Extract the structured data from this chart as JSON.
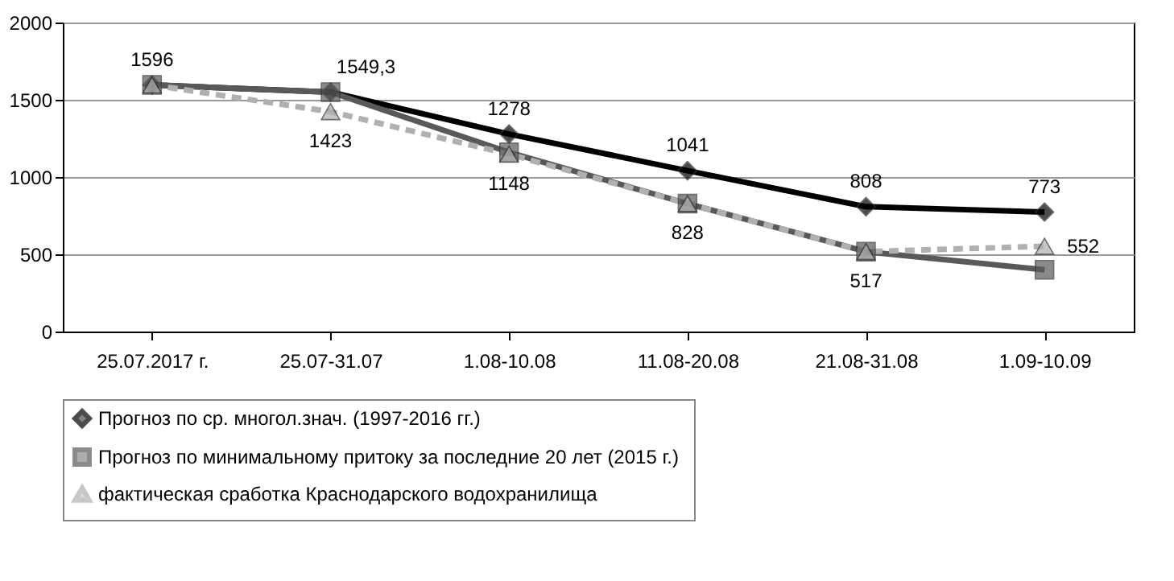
{
  "chart_data": {
    "type": "line",
    "categories": [
      "25.07.2017  г.",
      "25.07-31.07",
      "1.08-10.08",
      "11.08-20.08",
      "21.08-31.08",
      "1.09-10.09"
    ],
    "ylim": [
      0,
      2000
    ],
    "yticks": [
      0,
      500,
      1000,
      1500,
      2000
    ],
    "grid": "y",
    "legend": "bottom",
    "series": [
      {
        "name": "Прогноз по ср. многол.знач. (1997-2016  гг.)",
        "color": "#000000",
        "marker": "diamond",
        "line_style": "solid",
        "values": [
          1596,
          1550,
          1278,
          1041,
          808,
          773
        ],
        "value_labels": [
          "1596",
          null,
          "1278",
          "1041",
          "808",
          "773"
        ]
      },
      {
        "name": "Прогноз по минимальному  притоку за последние 20 лет (2015 г.)",
        "color": "#595959",
        "marker": "square",
        "line_style": "solid",
        "values": [
          1596,
          1549.3,
          1160,
          828,
          517,
          400
        ],
        "value_labels": [
          null,
          "1549,3",
          null,
          null,
          null,
          null
        ]
      },
      {
        "name": "фактическая  сработка  Краснодарского  водохранилища",
        "color": "#b0b0b0",
        "marker": "triangle",
        "line_style": "dashed",
        "values": [
          1596,
          1423,
          1148,
          828,
          517,
          552
        ],
        "value_labels": [
          null,
          "1423",
          "1148",
          "828",
          "517",
          "552"
        ]
      }
    ]
  }
}
